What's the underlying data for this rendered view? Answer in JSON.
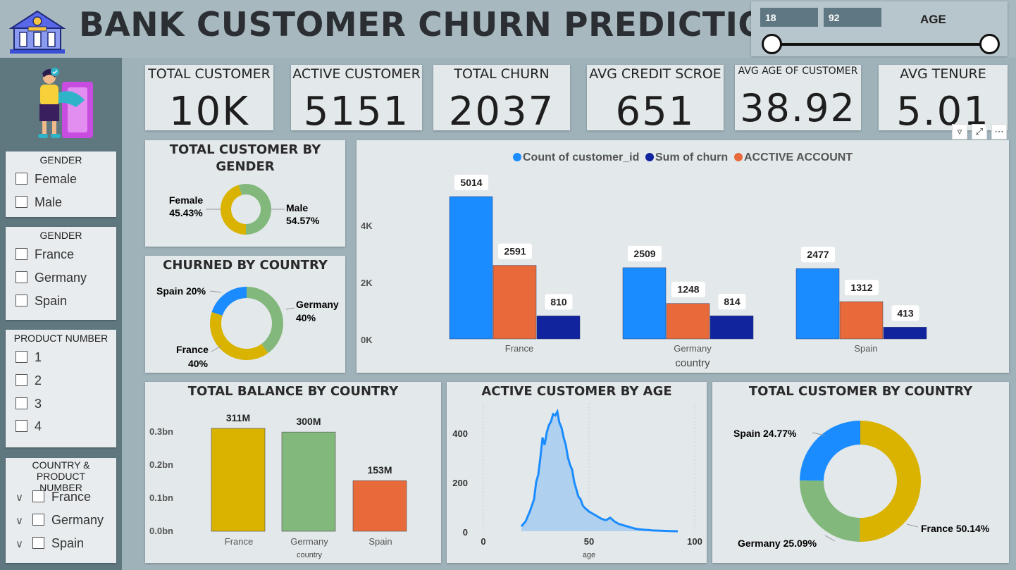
{
  "header": {
    "title": "BANK CUSTOMER CHURN PREDICTION"
  },
  "age_slicer": {
    "min": "18",
    "max": "92",
    "label": "AGE"
  },
  "slicers": {
    "gender": {
      "title": "GENDER",
      "items": [
        "Female",
        "Male"
      ]
    },
    "country": {
      "title": "GENDER",
      "items": [
        "France",
        "Germany",
        "Spain"
      ]
    },
    "product": {
      "title": "PRODUCT NUMBER",
      "items": [
        "1",
        "2",
        "3",
        "4"
      ]
    },
    "country_product": {
      "title": "COUNTRY & PRODUCT NUMBER",
      "items": [
        "France",
        "Germany",
        "Spain"
      ]
    }
  },
  "kpis": [
    {
      "label": "TOTAL CUSTOMER",
      "value": "10K"
    },
    {
      "label": "ACTIVE CUSTOMER",
      "value": "5151"
    },
    {
      "label": "TOTAL CHURN",
      "value": "2037"
    },
    {
      "label": "AVG CREDIT SCROE",
      "value": "651"
    },
    {
      "label": "AVG AGE OF CUSTOMER",
      "value": "38.92"
    },
    {
      "label": "AVG TENURE",
      "value": "5.01"
    }
  ],
  "colors": {
    "yellow": "#d9b300",
    "green": "#82b87c",
    "blue": "#1a8cff",
    "orange": "#e86a3a",
    "navy": "#12239e",
    "area": "#a9cdee"
  },
  "chart_data": [
    {
      "type": "pie",
      "title": "TOTAL CUSTOMER BY GENDER",
      "slices": [
        {
          "label": "Female",
          "value": 45.43,
          "text": "45.43%"
        },
        {
          "label": "Male",
          "value": 54.57,
          "text": "54.57%"
        }
      ]
    },
    {
      "type": "pie",
      "title": "CHURNED BY COUNTRY",
      "slices": [
        {
          "label": "Germany",
          "value": 40,
          "text": "40%"
        },
        {
          "label": "France",
          "value": 40,
          "text": "40%"
        },
        {
          "label": "Spain",
          "value": 20,
          "text": "20%"
        }
      ]
    },
    {
      "type": "bar",
      "legend": [
        "Count of customer_id",
        "Sum of churn",
        "ACCTIVE ACCOUNT"
      ],
      "categories": [
        "France",
        "Germany",
        "Spain"
      ],
      "series": [
        {
          "name": "Count of customer_id",
          "values": [
            5014,
            2509,
            2477
          ]
        },
        {
          "name": "ACCTIVE ACCOUNT",
          "values": [
            2591,
            1248,
            1312
          ]
        },
        {
          "name": "Sum of churn",
          "values": [
            810,
            814,
            413
          ]
        }
      ],
      "xlabel": "country",
      "yticks": [
        "0K",
        "2K",
        "4K"
      ],
      "ylim": [
        0,
        5014
      ]
    },
    {
      "type": "bar",
      "title": "TOTAL BALANCE BY COUNTRY",
      "categories": [
        "France",
        "Germany",
        "Spain"
      ],
      "values": [
        311,
        300,
        153
      ],
      "labels": [
        "311M",
        "300M",
        "153M"
      ],
      "xlabel": "country",
      "yticks": [
        "0.0bn",
        "0.1bn",
        "0.2bn",
        "0.3bn"
      ],
      "ylim": [
        0,
        311
      ]
    },
    {
      "type": "area",
      "title": "ACTIVE CUSTOMER BY AGE",
      "x": [
        18,
        20,
        22,
        24,
        25,
        26,
        27,
        28,
        29,
        30,
        31,
        32,
        33,
        34,
        35,
        36,
        37,
        38,
        39,
        40,
        41,
        42,
        43,
        44,
        45,
        46,
        47,
        48,
        50,
        52,
        54,
        56,
        58,
        60,
        62,
        64,
        66,
        68,
        70,
        72,
        74,
        76,
        78,
        80,
        84,
        88,
        92
      ],
      "y": [
        20,
        40,
        80,
        130,
        200,
        230,
        300,
        380,
        350,
        400,
        430,
        445,
        475,
        470,
        485,
        440,
        420,
        380,
        350,
        300,
        270,
        250,
        200,
        170,
        140,
        130,
        105,
        95,
        80,
        70,
        60,
        50,
        45,
        55,
        40,
        30,
        25,
        20,
        15,
        10,
        8,
        6,
        5,
        3,
        2,
        1,
        0
      ],
      "xlabel": "age",
      "xticks": [
        "0",
        "50",
        "100"
      ],
      "yticks": [
        "0",
        "200",
        "400"
      ],
      "xlim": [
        0,
        100
      ],
      "ylim": [
        0,
        500
      ]
    },
    {
      "type": "pie",
      "title": "TOTAL CUSTOMER BY COUNTRY",
      "slices": [
        {
          "label": "France",
          "value": 50.14,
          "text": "50.14%"
        },
        {
          "label": "Germany",
          "value": 25.09,
          "text": "25.09%"
        },
        {
          "label": "Spain",
          "value": 24.77,
          "text": "24.77%"
        }
      ]
    }
  ]
}
